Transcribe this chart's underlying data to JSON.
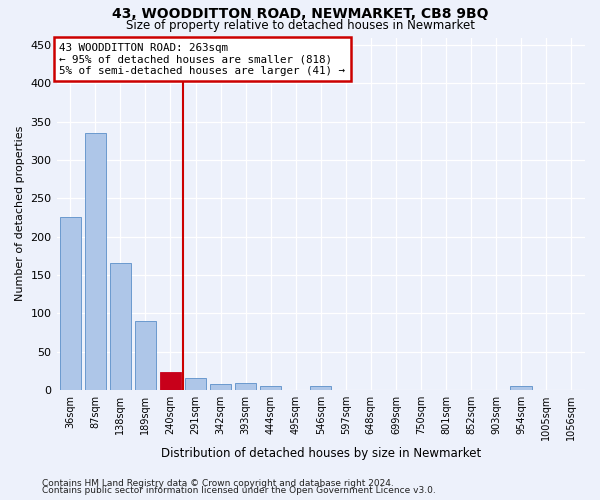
{
  "title": "43, WOODDITTON ROAD, NEWMARKET, CB8 9BQ",
  "subtitle": "Size of property relative to detached houses in Newmarket",
  "xlabel": "Distribution of detached houses by size in Newmarket",
  "ylabel": "Number of detached properties",
  "bar_labels": [
    "36sqm",
    "87sqm",
    "138sqm",
    "189sqm",
    "240sqm",
    "291sqm",
    "342sqm",
    "393sqm",
    "444sqm",
    "495sqm",
    "546sqm",
    "597sqm",
    "648sqm",
    "699sqm",
    "750sqm",
    "801sqm",
    "852sqm",
    "903sqm",
    "954sqm",
    "1005sqm",
    "1056sqm"
  ],
  "bar_values": [
    226,
    335,
    165,
    90,
    23,
    16,
    8,
    9,
    5,
    0,
    5,
    0,
    0,
    0,
    0,
    0,
    0,
    0,
    5,
    0,
    0
  ],
  "bar_color": "#aec6e8",
  "bar_edge_color": "#5b8fc9",
  "highlight_bar_index": 4,
  "highlight_bar_color": "#c8001a",
  "vline_x": 4.48,
  "vline_color": "#cc0000",
  "annotation_title": "43 WOODDITTON ROAD: 263sqm",
  "annotation_line1": "← 95% of detached houses are smaller (818)",
  "annotation_line2": "5% of semi-detached houses are larger (41) →",
  "annotation_box_color": "#cc0000",
  "ylim": [
    0,
    460
  ],
  "yticks": [
    0,
    50,
    100,
    150,
    200,
    250,
    300,
    350,
    400,
    450
  ],
  "footnote1": "Contains HM Land Registry data © Crown copyright and database right 2024.",
  "footnote2": "Contains public sector information licensed under the Open Government Licence v3.0.",
  "bg_color": "#edf1fb",
  "plot_bg_color": "#edf1fb"
}
